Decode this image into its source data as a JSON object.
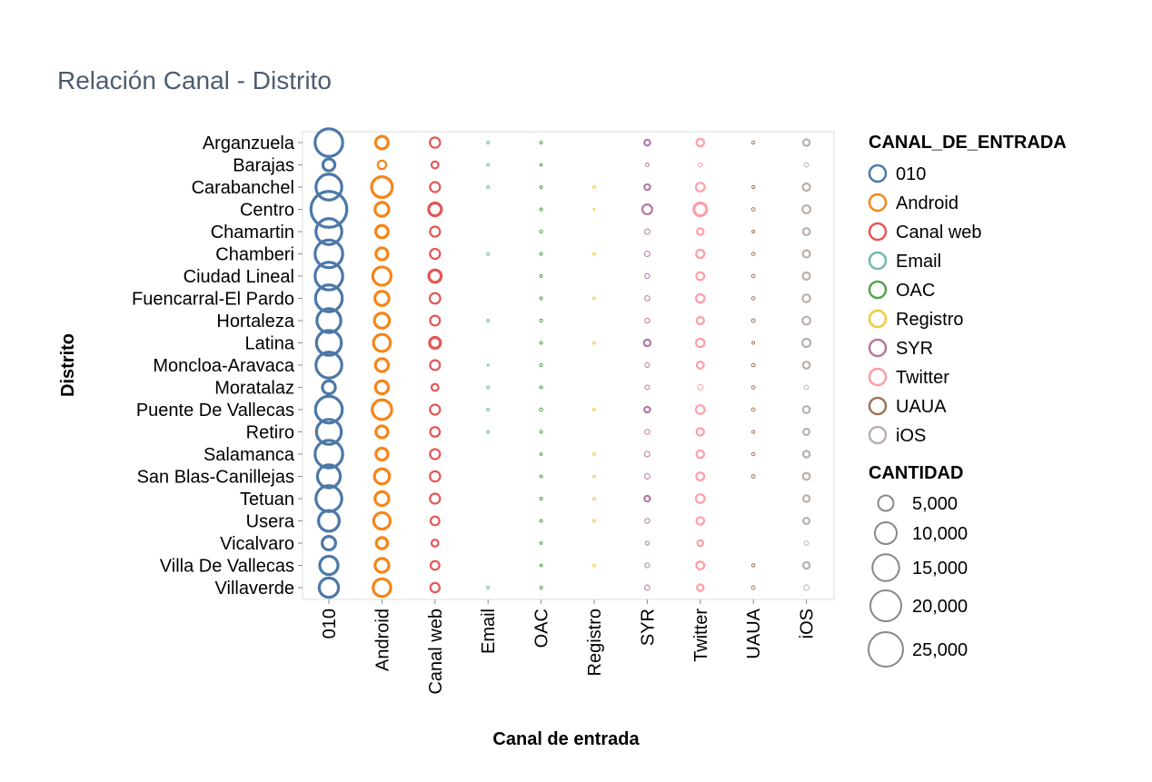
{
  "chart_data": {
    "type": "scatter",
    "title": "Relación Canal - Distrito",
    "xlabel": "Canal de entrada",
    "ylabel": "Distrito",
    "grid": false,
    "legend_position": "right",
    "x_categories": [
      "010",
      "Android",
      "Canal web",
      "Email",
      "OAC",
      "Registro",
      "SYR",
      "Twitter",
      "UAUA",
      "iOS"
    ],
    "y_categories": [
      "Arganzuela",
      "Barajas",
      "Carabanchel",
      "Centro",
      "Chamartin",
      "Chamberi",
      "Ciudad Lineal",
      "Fuencarral-El Pardo",
      "Hortaleza",
      "Latina",
      "Moncloa-Aravaca",
      "Moratalaz",
      "Puente De Vallecas",
      "Retiro",
      "Salamanca",
      "San Blas-Canillejas",
      "Tetuan",
      "Usera",
      "Vicalvaro",
      "Villa De Vallecas",
      "Villaverde"
    ],
    "colors": {
      "010": "#4c78a8",
      "Android": "#f58518",
      "Canal web": "#e45756",
      "Email": "#72b7b2",
      "OAC": "#54a24b",
      "Registro": "#eeca3b",
      "SYR": "#b279a2",
      "Twitter": "#ff9da6",
      "UAUA": "#9d755d",
      "iOS": "#bab0ac"
    },
    "color_legend_title": "CANAL_DE_ENTRADA",
    "size_legend_title": "CANTIDAD",
    "size_legend_values": [
      5000,
      10000,
      15000,
      20000,
      25000
    ],
    "size_legend_labels": [
      "5,000",
      "10,000",
      "15,000",
      "20,000",
      "25,000"
    ],
    "size_max_value": 25000,
    "series": [
      {
        "name": "010",
        "values": [
          16000,
          3000,
          14000,
          27000,
          14000,
          16000,
          16000,
          15000,
          12000,
          13000,
          14000,
          3500,
          15000,
          13000,
          16000,
          11000,
          14000,
          9000,
          3800,
          7000,
          7800
        ]
      },
      {
        "name": "Android",
        "values": [
          3300,
          1500,
          9000,
          4000,
          3200,
          3000,
          7000,
          4200,
          4700,
          6000,
          3500,
          3500,
          8000,
          3000,
          3000,
          4700,
          4000,
          5700,
          2600,
          4000,
          6500
        ]
      },
      {
        "name": "Canal web",
        "values": [
          2200,
          1000,
          2100,
          3400,
          2100,
          2100,
          3200,
          2300,
          2000,
          2500,
          2000,
          1000,
          2100,
          1900,
          2100,
          2200,
          2100,
          1600,
          1000,
          1600,
          1800
        ]
      },
      {
        "name": "Email",
        "values": [
          150,
          130,
          160,
          0,
          0,
          170,
          0,
          0,
          140,
          0,
          60,
          160,
          150,
          150,
          0,
          0,
          0,
          0,
          0,
          0,
          180
        ]
      },
      {
        "name": "OAC",
        "values": [
          140,
          120,
          150,
          150,
          200,
          150,
          160,
          170,
          190,
          160,
          180,
          160,
          220,
          170,
          130,
          160,
          160,
          160,
          120,
          140,
          170
        ]
      },
      {
        "name": "Registro",
        "values": [
          0,
          0,
          140,
          50,
          0,
          140,
          0,
          140,
          0,
          130,
          0,
          0,
          120,
          0,
          130,
          130,
          150,
          140,
          0,
          130,
          0
        ]
      },
      {
        "name": "SYR",
        "values": [
          700,
          260,
          700,
          2000,
          600,
          600,
          500,
          550,
          500,
          900,
          450,
          450,
          700,
          520,
          600,
          600,
          650,
          500,
          300,
          450,
          550
        ]
      },
      {
        "name": "Twitter",
        "values": [
          1200,
          400,
          1600,
          3400,
          900,
          1400,
          1300,
          1500,
          1100,
          1500,
          1000,
          600,
          1600,
          1100,
          1200,
          1300,
          1600,
          1200,
          700,
          1300,
          900
        ]
      },
      {
        "name": "UAUA",
        "values": [
          200,
          0,
          180,
          240,
          160,
          220,
          240,
          240,
          270,
          150,
          250,
          230,
          240,
          190,
          220,
          250,
          0,
          0,
          0,
          210,
          260
        ]
      },
      {
        "name": "iOS",
        "values": [
          900,
          400,
          1100,
          1300,
          1000,
          1100,
          1100,
          1200,
          1300,
          1400,
          1000,
          400,
          1000,
          800,
          900,
          1000,
          900,
          800,
          400,
          900,
          600
        ]
      }
    ]
  }
}
